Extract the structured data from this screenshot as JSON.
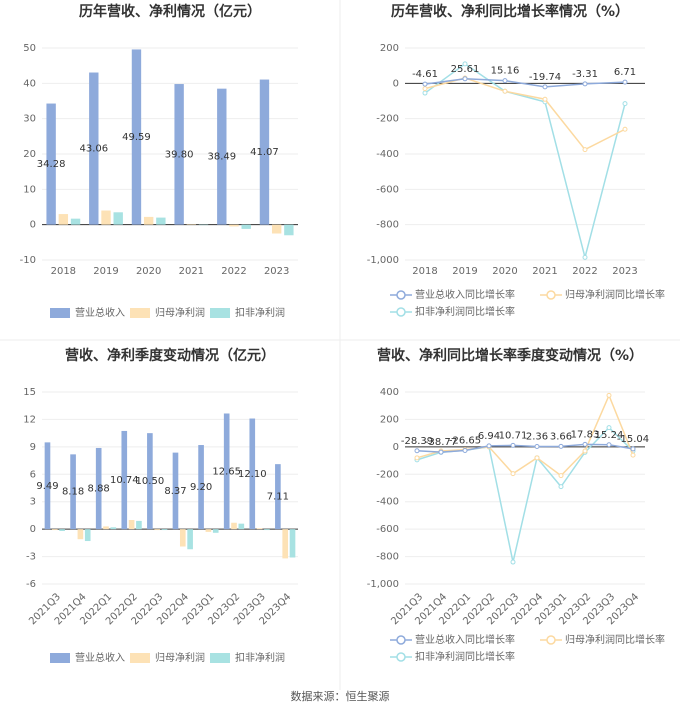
{
  "chart_data": [
    {
      "type": "bar",
      "title": "历年营收、净利情况（亿元）",
      "categories": [
        "2018",
        "2019",
        "2020",
        "2021",
        "2022",
        "2023"
      ],
      "series": [
        {
          "name": "营业总收入",
          "color": "#8eaadb",
          "values": [
            34.28,
            43.06,
            49.59,
            39.8,
            38.49,
            41.07
          ],
          "value_labels": [
            "34.28",
            "43.06",
            "49.59",
            "39.80",
            "38.49",
            "41.07"
          ]
        },
        {
          "name": "归母净利润",
          "color": "#fde2b6",
          "values": [
            3.0,
            4.0,
            2.2,
            0.1,
            -0.5,
            -2.5
          ]
        },
        {
          "name": "扣非净利润",
          "color": "#a8e2e2",
          "values": [
            1.7,
            3.5,
            2.0,
            -0.1,
            -1.2,
            -3.0
          ]
        }
      ],
      "ylim": [
        -10,
        50
      ],
      "yticks": [
        -10,
        0,
        10,
        20,
        30,
        40,
        50
      ],
      "grid": true
    },
    {
      "type": "line",
      "title": "历年营收、净利同比增长率情况（%）",
      "categories": [
        "2018",
        "2019",
        "2020",
        "2021",
        "2022",
        "2023"
      ],
      "series": [
        {
          "name": "营业总收入同比增长率",
          "color": "#8eaadb",
          "values": [
            -4.61,
            25.61,
            15.16,
            -19.74,
            -3.31,
            6.71
          ],
          "labeled": true
        },
        {
          "name": "归母净利润同比增长率",
          "color": "#fcd9a0",
          "values": [
            -30,
            30,
            -45,
            -90,
            -375,
            -260
          ]
        },
        {
          "name": "扣非净利润同比增长率",
          "color": "#a2dfe6",
          "values": [
            -55,
            110,
            -45,
            -105,
            -985,
            -115
          ]
        }
      ],
      "ylim": [
        -1000,
        200
      ],
      "yticks": [
        {
          "value": -1000,
          "label": "-1,000"
        },
        -800,
        -600,
        -400,
        -200,
        0,
        200
      ],
      "grid": true
    },
    {
      "type": "bar",
      "title": "营收、净利季度变动情况（亿元）",
      "categories": [
        "2021Q3",
        "2021Q4",
        "2022Q1",
        "2022Q2",
        "2022Q3",
        "2022Q4",
        "2023Q1",
        "2023Q2",
        "2023Q3",
        "2023Q4"
      ],
      "series": [
        {
          "name": "营业总收入",
          "color": "#8eaadb",
          "values": [
            9.49,
            8.18,
            8.88,
            10.74,
            10.5,
            8.37,
            9.2,
            12.65,
            12.1,
            7.11
          ],
          "value_labels": [
            "9.49",
            "8.18",
            "8.88",
            "10.74",
            "10.50",
            "8.37",
            "9.20",
            "12.65",
            "12.10",
            "7.11"
          ]
        },
        {
          "name": "归母净利润",
          "color": "#fde2b6",
          "values": [
            -0.1,
            -1.1,
            0.3,
            1.0,
            -0.1,
            -1.9,
            -0.3,
            0.7,
            0.1,
            -3.2
          ]
        },
        {
          "name": "扣非净利润",
          "color": "#a8e2e2",
          "values": [
            -0.2,
            -1.3,
            0.2,
            0.9,
            -0.1,
            -2.2,
            -0.4,
            0.6,
            -0.1,
            -3.1
          ]
        }
      ],
      "ylim": [
        -6,
        15
      ],
      "yticks": [
        -6,
        -3,
        0,
        3,
        6,
        9,
        12,
        15
      ],
      "grid": true
    },
    {
      "type": "line",
      "title": "营收、净利同比增长率季度变动情况（%）",
      "categories": [
        "2021Q3",
        "2021Q4",
        "2022Q1",
        "2022Q2",
        "2022Q3",
        "2022Q4",
        "2023Q1",
        "2023Q2",
        "2023Q3",
        "2023Q4"
      ],
      "series": [
        {
          "name": "营业总收入同比增长率",
          "color": "#8eaadb",
          "values": [
            -28.39,
            -38.77,
            -26.65,
            6.94,
            10.71,
            2.36,
            3.66,
            17.83,
            15.24,
            -15.04
          ],
          "labeled": true
        },
        {
          "name": "归母净利润同比增长率",
          "color": "#fcd9a0",
          "values": [
            -80,
            -30,
            -20,
            0,
            -195,
            -80,
            -210,
            -30,
            375,
            -60
          ]
        },
        {
          "name": "扣非净利润同比增长率",
          "color": "#a2dfe6",
          "values": [
            -95,
            -40,
            -25,
            0,
            -840,
            -80,
            -290,
            -40,
            140,
            -30
          ]
        }
      ],
      "ylim": [
        -1000,
        400
      ],
      "yticks": [
        {
          "value": -1000,
          "label": "-1,000"
        },
        -800,
        -600,
        -400,
        -200,
        0,
        200,
        400
      ],
      "grid": true
    }
  ],
  "source": "数据来源：恒生聚源"
}
